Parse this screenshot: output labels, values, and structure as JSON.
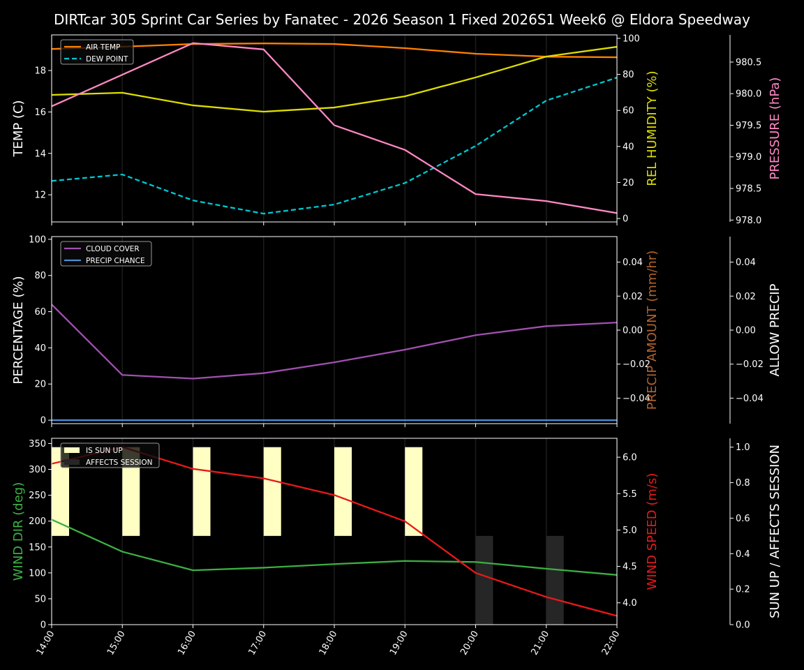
{
  "title": "DIRTcar 305 Sprint Car Series by Fanatec - 2026 Season 1 Fixed 2026S1 Week6 @ Eldora Speedway",
  "chart_data": {
    "type": "line",
    "grid": "vertical only",
    "x": [
      "14:00",
      "15:00",
      "16:00",
      "17:00",
      "18:00",
      "19:00",
      "20:00",
      "21:00",
      "22:00"
    ],
    "panels": [
      {
        "axes": {
          "left": {
            "label": "TEMP (C)",
            "color": "#ffffff",
            "ylim": [
              10.69,
              19.72
            ],
            "ticks": [
              12,
              14,
              16,
              18
            ],
            "decimals": 0
          },
          "right": {
            "label": "REL HUMIDITY (%)",
            "color": "#dede00",
            "ylim": [
              -1.9,
              101.9
            ],
            "ticks": [
              0,
              20,
              40,
              60,
              80,
              100
            ],
            "decimals": 0
          },
          "far": {
            "label": "PRESSURE (hPa)",
            "color": "#ff88c4",
            "ylim": [
              977.97,
              980.93
            ],
            "ticks": [
              978.0,
              978.5,
              979.0,
              979.5,
              980.0,
              980.5
            ],
            "decimals": 1
          }
        },
        "legend_position": "top-left",
        "series": [
          {
            "name": "AIR TEMP",
            "axis": "left",
            "color": "#ff8000",
            "dash": false,
            "values": [
              19.04,
              19.15,
              19.28,
              19.31,
              19.28,
              19.08,
              18.81,
              18.67,
              18.64
            ]
          },
          {
            "name": "DEW POINT",
            "axis": "left",
            "color": "#00c8d0",
            "dash": true,
            "values": [
              12.67,
              12.98,
              11.73,
              11.09,
              11.53,
              12.57,
              14.36,
              16.55,
              17.66
            ]
          },
          {
            "axis": "right",
            "color": "#dede00",
            "dash": false,
            "values": [
              68.6,
              69.8,
              62.8,
              59.3,
              61.6,
              67.8,
              78.3,
              89.9,
              95.3
            ]
          },
          {
            "axis": "far",
            "color": "#ff88c4",
            "dash": false,
            "values": [
              979.8,
              980.3,
              980.8,
              980.7,
              979.5,
              979.11,
              978.41,
              978.3,
              978.11
            ]
          }
        ]
      },
      {
        "axes": {
          "left": {
            "label": "PERCENTAGE (%)",
            "color": "#ffffff",
            "ylim": [
              -1.9,
              101.5
            ],
            "ticks": [
              0,
              20,
              40,
              60,
              80,
              100
            ],
            "decimals": 0
          },
          "right": {
            "label": "PRECIP AMOUNT (mm/hr)",
            "color": "#b0622d",
            "ylim": [
              -0.055,
              0.055
            ],
            "ticks": [
              -0.04,
              -0.02,
              0,
              0.02,
              0.04
            ],
            "decimals": 2
          },
          "far": {
            "label": "ALLOW PRECIP",
            "color": "#ffffff",
            "ylim": [
              -0.055,
              0.055
            ],
            "ticks": [
              -0.04,
              -0.02,
              0,
              0.02,
              0.04
            ],
            "decimals": 2
          }
        },
        "legend_position": "top-left",
        "series": [
          {
            "name": "CLOUD COVER",
            "axis": "left",
            "color": "#a050b0",
            "dash": false,
            "values": [
              64,
              25,
              23,
              26,
              32,
              39,
              47,
              52,
              54
            ]
          },
          {
            "name": "PRECIP CHANCE",
            "axis": "left",
            "color": "#4a8ed0",
            "dash": false,
            "values": [
              0,
              0,
              0,
              0,
              0,
              0,
              0,
              0,
              0
            ]
          }
        ]
      },
      {
        "axes": {
          "left": {
            "label": "WIND DIR (deg)",
            "color": "#3cb043",
            "ylim": [
              0,
              360
            ],
            "ticks": [
              0,
              50,
              100,
              150,
              200,
              250,
              300,
              350
            ],
            "decimals": 0
          },
          "right": {
            "label": "WIND SPEED (m/s)",
            "color": "#e8191a",
            "ylim": [
              3.7,
              6.26
            ],
            "ticks": [
              4.0,
              4.5,
              5.0,
              5.5,
              6.0
            ],
            "decimals": 1
          },
          "far": {
            "label": "SUN UP / AFFECTS SESSION",
            "color": "#ffffff",
            "ylim": [
              0,
              1.05
            ],
            "ticks": [
              0,
              0.2,
              0.4,
              0.6,
              0.8,
              1.0
            ],
            "decimals": 1
          }
        },
        "legend_position": "top-left",
        "bars": [
          {
            "name": "IS SUN UP",
            "axis": "far",
            "color": "#ffffc4",
            "values": [
              1,
              1,
              1,
              1,
              1,
              1,
              0,
              0,
              0
            ]
          },
          {
            "name": "AFFECTS SESSION",
            "axis": "far",
            "color": "#262626",
            "values": [
              0,
              0,
              0,
              0,
              0,
              0,
              1,
              1,
              0
            ]
          }
        ],
        "series": [
          {
            "axis": "left",
            "color": "#3cb043",
            "dash": false,
            "values": [
              203,
              141,
              105,
              110,
              117,
              123,
              121,
              108,
              96
            ]
          },
          {
            "axis": "right",
            "color": "#e8191a",
            "dash": false,
            "values": [
              5.91,
              6.14,
              5.84,
              5.71,
              5.48,
              5.12,
              4.41,
              4.08,
              3.82
            ]
          }
        ]
      }
    ]
  }
}
